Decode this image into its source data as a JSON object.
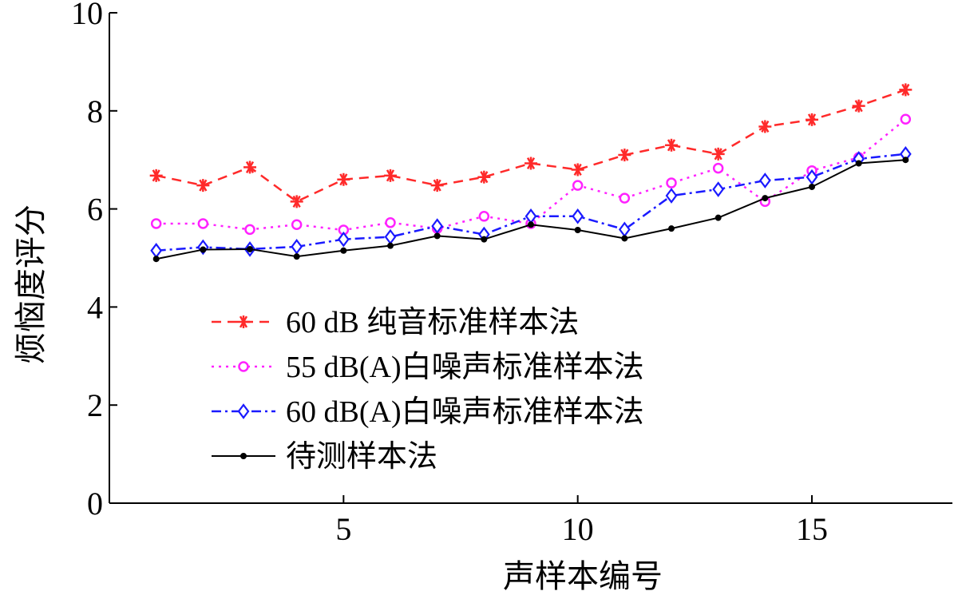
{
  "chart_data": {
    "type": "line",
    "xlabel": "声样本编号",
    "ylabel": "烦恼度评分",
    "xlim": [
      0,
      18
    ],
    "ylim": [
      0,
      10
    ],
    "xticks": [
      5,
      10,
      15
    ],
    "yticks": [
      0,
      2,
      4,
      6,
      8,
      10
    ],
    "grid": false,
    "legend_position": "center-left",
    "x": [
      1,
      2,
      3,
      4,
      5,
      6,
      7,
      8,
      9,
      10,
      11,
      12,
      13,
      14,
      15,
      16,
      17
    ],
    "series": [
      {
        "name": "60 dB 纯音标准样本法",
        "color": "#ff2a2a",
        "line_style": "dashed",
        "marker": "asterisk",
        "values": [
          6.68,
          6.48,
          6.85,
          6.15,
          6.6,
          6.68,
          6.48,
          6.65,
          6.93,
          6.8,
          7.1,
          7.3,
          7.12,
          7.68,
          7.82,
          8.1,
          8.43
        ]
      },
      {
        "name": "55 dB(A)白噪声标准样本法",
        "color": "#ff22ff",
        "line_style": "dotted",
        "marker": "circle",
        "values": [
          5.7,
          5.7,
          5.58,
          5.68,
          5.57,
          5.72,
          5.6,
          5.85,
          5.7,
          6.48,
          6.22,
          6.53,
          6.83,
          6.15,
          6.78,
          7.05,
          7.83
        ]
      },
      {
        "name": "60 dB(A)白噪声标准样本法",
        "color": "#1a1aff",
        "line_style": "dashdot",
        "marker": "diamond",
        "values": [
          5.15,
          5.22,
          5.18,
          5.23,
          5.38,
          5.43,
          5.65,
          5.48,
          5.85,
          5.85,
          5.58,
          6.27,
          6.4,
          6.58,
          6.65,
          7.02,
          7.12
        ]
      },
      {
        "name": "待测样本法",
        "color": "#000000",
        "line_style": "solid",
        "marker": "dot",
        "values": [
          4.98,
          5.17,
          5.18,
          5.03,
          5.15,
          5.25,
          5.45,
          5.38,
          5.68,
          5.57,
          5.4,
          5.6,
          5.82,
          6.22,
          6.45,
          6.93,
          7.0
        ]
      }
    ]
  }
}
